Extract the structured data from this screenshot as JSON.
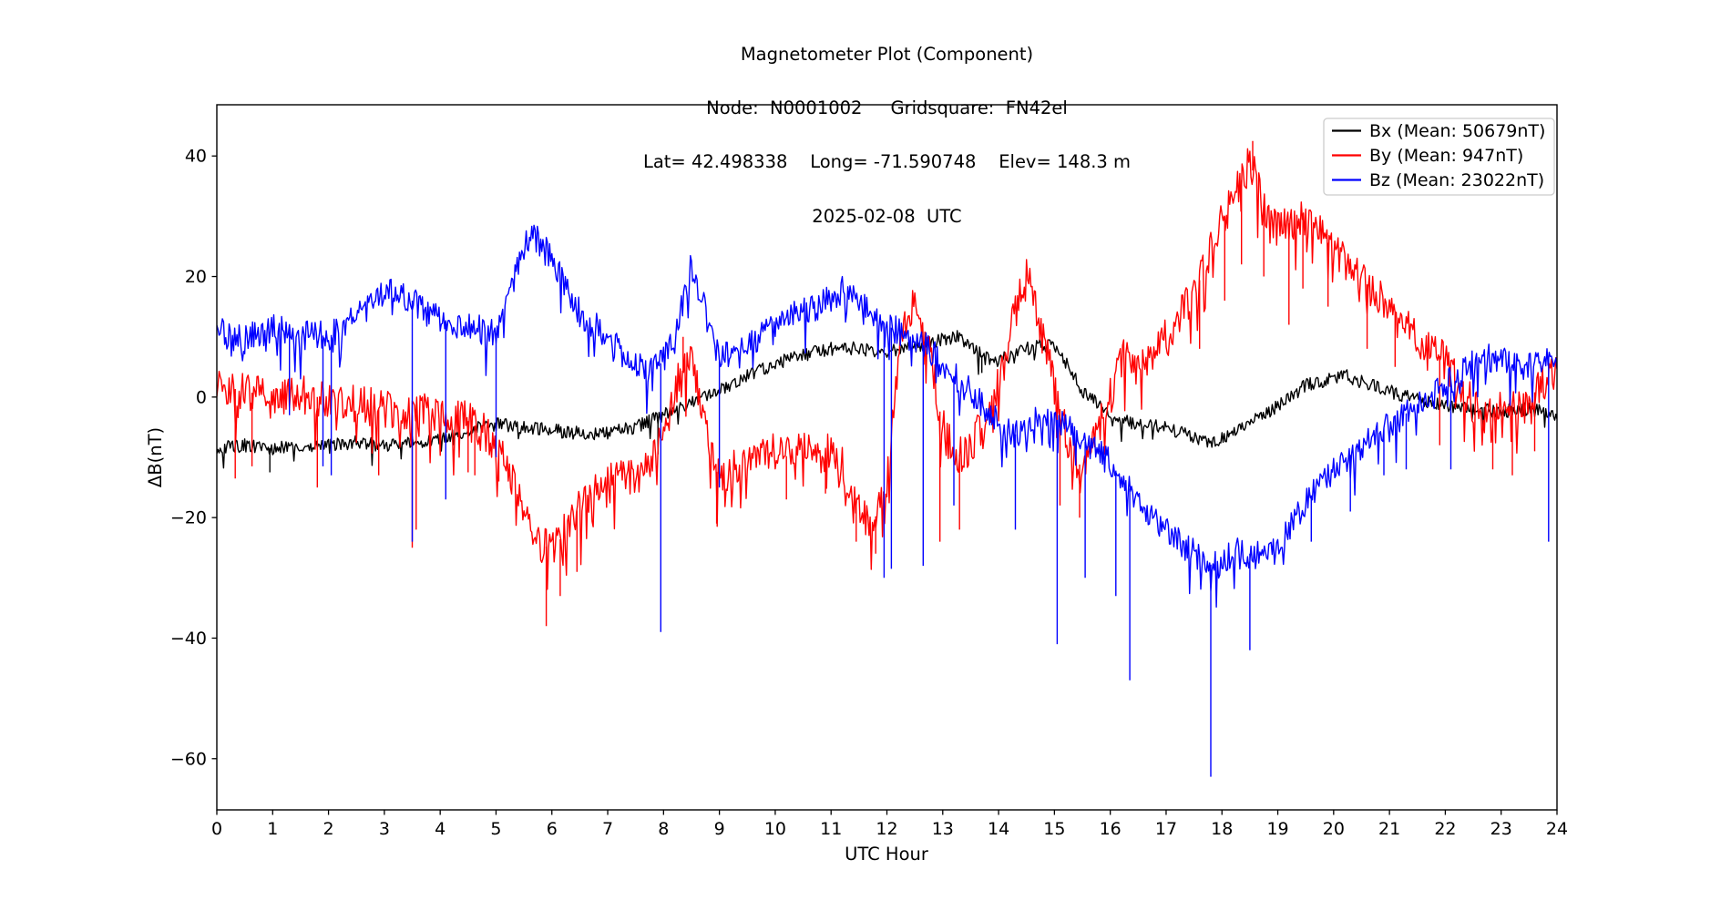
{
  "figure": {
    "title_lines": [
      "Magnetometer Plot (Component)",
      "Node:  N0001002     Gridsquare:  FN42el",
      "Lat= 42.498338    Long= -71.590748    Elev= 148.3 m",
      "2025-02-08  UTC"
    ],
    "xlabel": "UTC Hour",
    "ylabel": "ΔB(nT)"
  },
  "chart_data": {
    "type": "line",
    "title": "Magnetometer Plot (Component)",
    "subtitle": "Node: N0001002  Gridsquare: FN42el  Lat= 42.498338  Long= -71.590748  Elev= 148.3 m  2025-02-08 UTC",
    "xlabel": "UTC Hour",
    "ylabel": "ΔB(nT)",
    "xlim": [
      0,
      24
    ],
    "ylim": [
      -68.5,
      48.5
    ],
    "x_ticks": [
      0,
      1,
      2,
      3,
      4,
      5,
      6,
      7,
      8,
      9,
      10,
      11,
      12,
      13,
      14,
      15,
      16,
      17,
      18,
      19,
      20,
      21,
      22,
      23,
      24
    ],
    "y_ticks": [
      40,
      20,
      0,
      -20,
      -40,
      -60
    ],
    "y_tick_labels": [
      "40",
      "20",
      "0",
      "−20",
      "−40",
      "−60"
    ],
    "grid": false,
    "legend_position": "upper right",
    "sample_step_hours": 0.25,
    "series": [
      {
        "id": "bx",
        "name": "Bx (Mean: 50679nT)",
        "mean_nT": 50679,
        "color": "#000000",
        "noise_band": 1.1,
        "hair_probability": 0.02,
        "hair_depth": 3.5,
        "values": [
          -8.5,
          -8.3,
          -8.0,
          -8.3,
          -8.5,
          -8.2,
          -8.0,
          -8.0,
          -8.0,
          -7.8,
          -7.5,
          -7.8,
          -8.0,
          -7.8,
          -7.5,
          -7.2,
          -7.0,
          -6.2,
          -5.5,
          -5.0,
          -4.5,
          -4.7,
          -5.0,
          -5.2,
          -5.5,
          -5.8,
          -6.0,
          -6.0,
          -6.0,
          -5.5,
          -5.0,
          -4.0,
          -3.0,
          -2.0,
          -1.0,
          0.0,
          1.0,
          2.2,
          3.5,
          4.5,
          5.5,
          6.3,
          7.0,
          7.5,
          8.0,
          8.2,
          8.0,
          7.8,
          7.5,
          8.0,
          8.5,
          9.0,
          9.5,
          10.0,
          8.5,
          6.5,
          6.0,
          7.0,
          8.0,
          8.5,
          8.5,
          5.0,
          1.0,
          -1.0,
          -3.0,
          -4.0,
          -4.5,
          -4.8,
          -5.0,
          -5.8,
          -6.5,
          -7.5,
          -7.0,
          -5.5,
          -4.0,
          -2.8,
          -1.5,
          0.0,
          2.0,
          2.5,
          3.0,
          3.5,
          2.5,
          1.8,
          1.0,
          0.2,
          -0.5,
          -1.0,
          -1.5,
          -1.8,
          -2.0,
          -2.2,
          -2.5,
          -2.0,
          -2.0,
          -2.5,
          -3.0
        ],
        "spikes": [
          [
            0.95,
            -12.5
          ],
          [
            7.9,
            -9.5
          ],
          [
            13.7,
            4.0
          ]
        ]
      },
      {
        "id": "by",
        "name": "By (Mean: 947nT)",
        "mean_nT": 947,
        "color": "#ff0000",
        "noise_band": 3.2,
        "hair_probability": 0.12,
        "hair_depth": 7.0,
        "values": [
          2.5,
          1.5,
          1.0,
          0.5,
          0.5,
          0.0,
          0.5,
          0.0,
          0.0,
          -0.5,
          -1.0,
          -1.5,
          -2.0,
          -2.5,
          -3.0,
          -2.5,
          -2.5,
          -3.0,
          -4.0,
          -5.5,
          -8.0,
          -13.0,
          -19.0,
          -23.0,
          -26.0,
          -22.0,
          -18.0,
          -15.5,
          -14.0,
          -13.0,
          -14.0,
          -11.0,
          -6.0,
          3.0,
          6.0,
          -6.0,
          -14.0,
          -12.0,
          -10.0,
          -8.5,
          -9.0,
          -10.0,
          -9.0,
          -9.5,
          -9.0,
          -12.0,
          -19.0,
          -21.0,
          -15.0,
          10.0,
          17.0,
          8.0,
          -5.0,
          -10.0,
          -8.0,
          -4.0,
          2.0,
          12.0,
          21.0,
          12.0,
          2.0,
          -8.0,
          -12.0,
          -6.0,
          0.0,
          7.0,
          4.5,
          7.0,
          10.0,
          13.5,
          17.0,
          23.0,
          29.0,
          34.0,
          39.0,
          32.0,
          28.0,
          29.0,
          30.0,
          28.0,
          24.0,
          22.0,
          19.5,
          17.5,
          15.5,
          12.0,
          10.0,
          8.0,
          6.0,
          2.0,
          -1.0,
          -4.0,
          -1.0,
          -2.0,
          0.0,
          2.0,
          4.0
        ],
        "spikes": [
          [
            0.33,
            -13.5
          ],
          [
            0.63,
            -11.5
          ],
          [
            1.8,
            -15
          ],
          [
            2.9,
            -13
          ],
          [
            3.5,
            -25
          ],
          [
            3.57,
            -22
          ],
          [
            4.5,
            -12.5
          ],
          [
            4.62,
            -13
          ],
          [
            5.05,
            -14
          ],
          [
            5.9,
            -38
          ],
          [
            6.15,
            -33
          ],
          [
            6.45,
            -29
          ],
          [
            8.35,
            10
          ],
          [
            8.95,
            -21
          ],
          [
            10.2,
            -17
          ],
          [
            10.9,
            -16
          ],
          [
            11.45,
            -24
          ],
          [
            11.8,
            -26
          ],
          [
            12.95,
            -24
          ],
          [
            13.3,
            -22
          ],
          [
            15.1,
            -18
          ],
          [
            15.45,
            -20
          ],
          [
            17.6,
            8
          ],
          [
            18.05,
            16
          ],
          [
            18.35,
            22
          ],
          [
            18.55,
            42.5
          ],
          [
            18.75,
            20
          ],
          [
            19.2,
            12
          ],
          [
            19.45,
            18
          ],
          [
            19.9,
            15
          ],
          [
            20.6,
            8
          ],
          [
            21.1,
            5
          ],
          [
            21.9,
            -8
          ],
          [
            22.85,
            -12
          ],
          [
            23.2,
            -13
          ],
          [
            23.6,
            -9
          ]
        ]
      },
      {
        "id": "bz",
        "name": "Bz (Mean: 23022nT)",
        "mean_nT": 23022,
        "color": "#0000ff",
        "noise_band": 2.4,
        "hair_probability": 0.08,
        "hair_depth": 6.0,
        "values": [
          11.0,
          10.0,
          9.5,
          10.5,
          11.5,
          11.0,
          10.0,
          10.5,
          10.0,
          11.5,
          13.5,
          15.5,
          17.0,
          17.5,
          16.0,
          14.0,
          13.0,
          12.0,
          12.0,
          11.0,
          10.5,
          17.0,
          25.0,
          27.0,
          23.0,
          18.0,
          14.0,
          12.0,
          10.0,
          8.0,
          6.0,
          4.0,
          6.0,
          12.0,
          22.0,
          14.0,
          6.0,
          8.0,
          9.0,
          10.0,
          11.5,
          13.0,
          14.5,
          15.0,
          16.5,
          18.0,
          16.0,
          13.5,
          12.0,
          10.5,
          9.5,
          8.0,
          5.5,
          3.0,
          1.0,
          -2.0,
          -4.0,
          -6.5,
          -5.0,
          -3.5,
          -3.5,
          -5.0,
          -7.0,
          -9.0,
          -11.0,
          -14.0,
          -17.0,
          -19.5,
          -22.0,
          -24.0,
          -26.0,
          -28.0,
          -27.0,
          -25.5,
          -26.0,
          -26.5,
          -25.0,
          -21.0,
          -17.5,
          -14.5,
          -12.0,
          -10.0,
          -8.0,
          -6.0,
          -4.5,
          -3.0,
          -1.5,
          0.0,
          2.0,
          3.5,
          5.5,
          6.5,
          6.0,
          5.0,
          5.0,
          6.0,
          7.0
        ],
        "spikes": [
          [
            1.3,
            -3
          ],
          [
            1.9,
            -11.5
          ],
          [
            2.05,
            -13
          ],
          [
            3.5,
            -24
          ],
          [
            4.1,
            -17
          ],
          [
            5.0,
            -10
          ],
          [
            7.95,
            -39
          ],
          [
            9.0,
            -15
          ],
          [
            11.95,
            -30
          ],
          [
            12.08,
            -28.5
          ],
          [
            12.65,
            -28
          ],
          [
            13.2,
            -18
          ],
          [
            14.3,
            -22
          ],
          [
            15.05,
            -41
          ],
          [
            15.55,
            -30
          ],
          [
            16.1,
            -33
          ],
          [
            16.35,
            -47
          ],
          [
            17.8,
            -63
          ],
          [
            18.5,
            -42
          ],
          [
            19.6,
            -24
          ],
          [
            20.3,
            -19
          ],
          [
            20.9,
            -13
          ],
          [
            21.3,
            -12
          ],
          [
            22.1,
            -12
          ],
          [
            23.85,
            -24
          ]
        ]
      }
    ]
  },
  "legend": {
    "entries": [
      {
        "label": "Bx (Mean: 50679nT)",
        "color": "#000000"
      },
      {
        "label": "By (Mean: 947nT)",
        "color": "#ff0000"
      },
      {
        "label": "Bz (Mean: 23022nT)",
        "color": "#0000ff"
      }
    ]
  }
}
